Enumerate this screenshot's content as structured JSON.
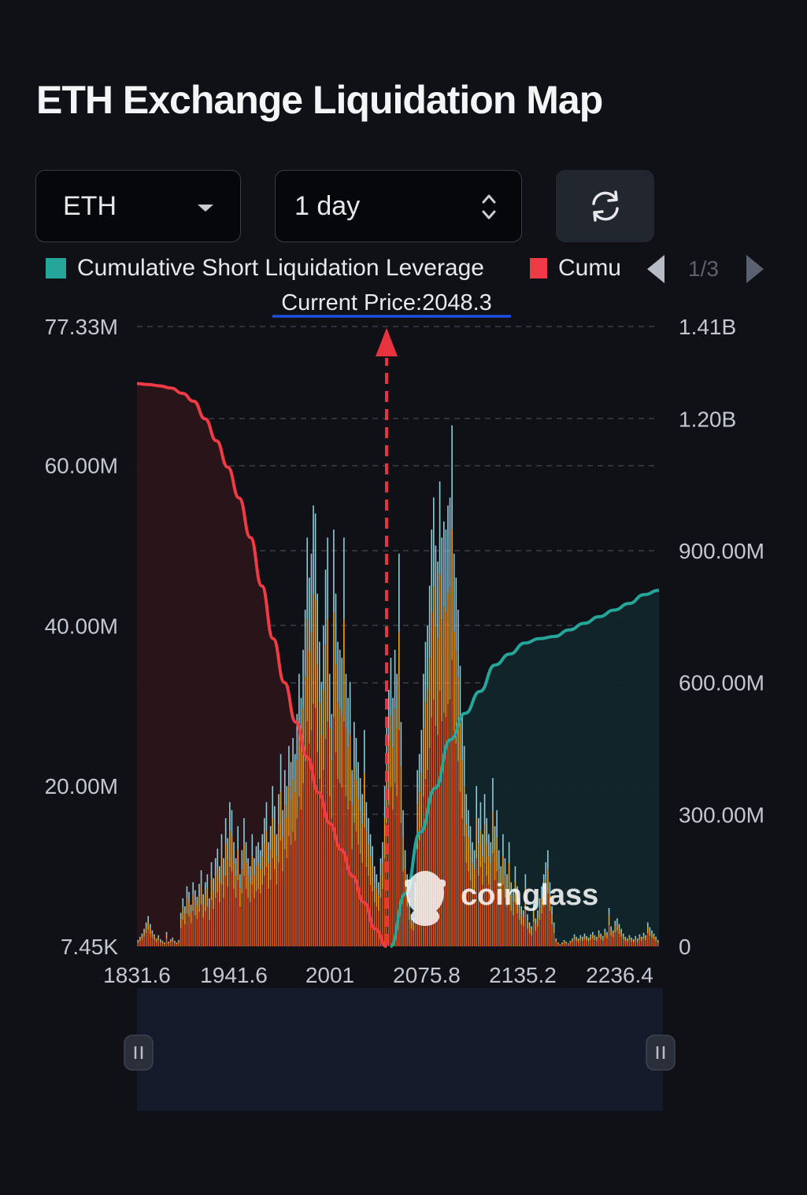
{
  "header": {
    "title": "ETH Exchange Liquidation Map"
  },
  "controls": {
    "coin_select": {
      "value": "ETH"
    },
    "period_select": {
      "value": "1 day"
    },
    "refresh_icon": "refresh-icon"
  },
  "legend": {
    "items": [
      {
        "label": "Cumulative Short Liquidation Leverage",
        "color": "#26a69a"
      },
      {
        "label": "Cumu",
        "color": "#ef3b45"
      }
    ],
    "pager": {
      "text": "1/3"
    }
  },
  "watermark": {
    "text": "coinglass"
  },
  "chart_data": {
    "type": "bar",
    "current_price": {
      "label": "Current Price:2048.3",
      "value": 2048.3
    },
    "x_ticks": [
      "1831.6",
      "1941.6",
      "2001",
      "2075.8",
      "2135.2",
      "2236.4"
    ],
    "y_left_ticks": [
      "77.33M",
      "60.00M",
      "40.00M",
      "20.00M",
      "7.45K"
    ],
    "y_right_ticks": [
      "1.41B",
      "1.20B",
      "900.00M",
      "600.00M",
      "300.00M",
      "0"
    ],
    "ylim_left": [
      0,
      77330000
    ],
    "ylim_right": [
      0,
      1410000000
    ],
    "colors": {
      "bar_low": "#e0561c",
      "bar_mid": "#f2a21c",
      "bar_top": "#8fcad8",
      "long_line": "#ef3b45",
      "short_line": "#26a69a"
    },
    "series": [
      {
        "kind": "cumulative_long",
        "values_millions": [
          1280,
          1278,
          1275,
          1270,
          1258,
          1240,
          1200,
          1150,
          1090,
          1020,
          930,
          820,
          700,
          600,
          510,
          430,
          350,
          280,
          220,
          160,
          100,
          40,
          0
        ]
      },
      {
        "kind": "cumulative_short",
        "values_millions": [
          0,
          120,
          260,
          360,
          470,
          530,
          580,
          640,
          665,
          690,
          700,
          705,
          720,
          735,
          750,
          765,
          780,
          800,
          810
        ]
      },
      {
        "kind": "liquidation_bars",
        "values_millions": [
          0.8,
          1.2,
          1.6,
          2.2,
          3.0,
          3.8,
          2.8,
          2.0,
          1.5,
          1.0,
          1.4,
          0.9,
          0.7,
          0.5,
          1.8,
          0.6,
          0.9,
          1.1,
          0.7,
          0.5,
          0.8,
          4.2,
          6.0,
          5.0,
          7.5,
          6.8,
          5.2,
          8.0,
          7.0,
          6.2,
          7.8,
          9.5,
          6.5,
          8.0,
          9.0,
          6.0,
          10.5,
          8.5,
          11.0,
          12.2,
          10.0,
          14.0,
          11.0,
          16.0,
          13.5,
          18.0,
          17.0,
          13.0,
          11.0,
          15.0,
          9.0,
          12.0,
          16.0,
          13.0,
          11.0,
          10.0,
          14.0,
          11.0,
          12.5,
          13.0,
          12.0,
          14.0,
          16.0,
          18.0,
          13.0,
          15.0,
          20.0,
          17.5,
          14.0,
          19.0,
          24.0,
          17.0,
          22.0,
          20.0,
          25.0,
          23.0,
          26.0,
          24.0,
          29.0,
          34.0,
          31.0,
          37.0,
          42.0,
          51.0,
          46.0,
          49.0,
          55.0,
          54.0,
          44.0,
          38.0,
          33.0,
          40.0,
          47.0,
          51.0,
          34.0,
          29.0,
          52.0,
          44.0,
          38.0,
          37.0,
          36.0,
          51.0,
          34.0,
          31.0,
          33.0,
          22.0,
          28.0,
          26.0,
          23.0,
          21.0,
          19.0,
          27.0,
          18.0,
          16.0,
          14.0,
          12.5,
          10.0,
          9.0,
          8.0,
          11.0,
          13.0,
          20.0,
          28.0,
          32.0,
          36.0,
          31.0,
          37.0,
          34.0,
          49.0,
          28.0,
          17.0,
          12.0,
          9.0,
          6.0,
          4.0,
          3.5,
          8.0,
          22.0,
          24.0,
          27.0,
          34.0,
          38.0,
          40.0,
          45.0,
          52.0,
          56.0,
          50.0,
          48.0,
          58.0,
          51.0,
          53.0,
          52.0,
          55.0,
          56.0,
          65.0,
          49.0,
          46.0,
          42.0,
          35.0,
          29.0,
          25.0,
          19.0,
          17.0,
          15.0,
          13.0,
          12.0,
          20.0,
          16.0,
          18.0,
          14.0,
          19.0,
          16.0,
          14.0,
          13.0,
          21.0,
          15.0,
          17.0,
          12.0,
          10.0,
          14.0,
          11.0,
          9.0,
          13.0,
          8.0,
          7.0,
          10.0,
          7.5,
          6.0,
          5.0,
          4.5,
          9.0,
          4.0,
          3.0,
          2.5,
          5.5,
          3.5,
          4.5,
          6.0,
          7.5,
          9.0,
          10.5,
          12.0,
          8.0,
          5.0,
          3.0,
          1.0,
          0.5,
          0.3,
          0.5,
          0.8,
          0.6,
          0.4,
          0.7,
          1.0,
          1.5,
          1.2,
          1.0,
          1.4,
          1.2,
          1.6,
          1.3,
          1.1,
          1.5,
          1.8,
          1.4,
          1.2,
          2.0,
          1.6,
          1.3,
          2.2,
          1.8,
          4.8,
          2.5,
          2.0,
          3.2,
          3.5,
          2.8,
          2.2,
          1.6,
          1.2,
          1.0,
          1.4,
          1.1,
          0.9,
          1.3,
          1.0,
          1.5,
          1.2,
          1.7,
          1.4,
          3.0,
          2.4,
          2.0,
          1.6,
          1.2,
          0.8
        ]
      }
    ],
    "grid": true
  }
}
